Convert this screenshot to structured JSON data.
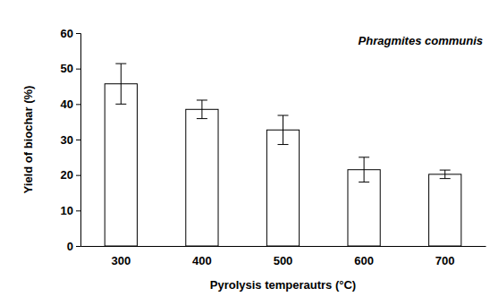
{
  "chart_data": {
    "type": "bar",
    "annotation": "Phragmites communis",
    "x_label": "Pyrolysis temperautrs (°C)",
    "y_label": "Yield of biochar (%)",
    "categories": [
      "300",
      "400",
      "500",
      "600",
      "700"
    ],
    "values": [
      45.7,
      38.5,
      32.7,
      21.5,
      20.2
    ],
    "errors": [
      5.7,
      2.6,
      4.1,
      3.5,
      1.2
    ],
    "color": "#ffffff",
    "ylim": [
      0,
      60
    ],
    "yticks": [
      0,
      10,
      20,
      30,
      40,
      50,
      60
    ],
    "grid": false
  }
}
